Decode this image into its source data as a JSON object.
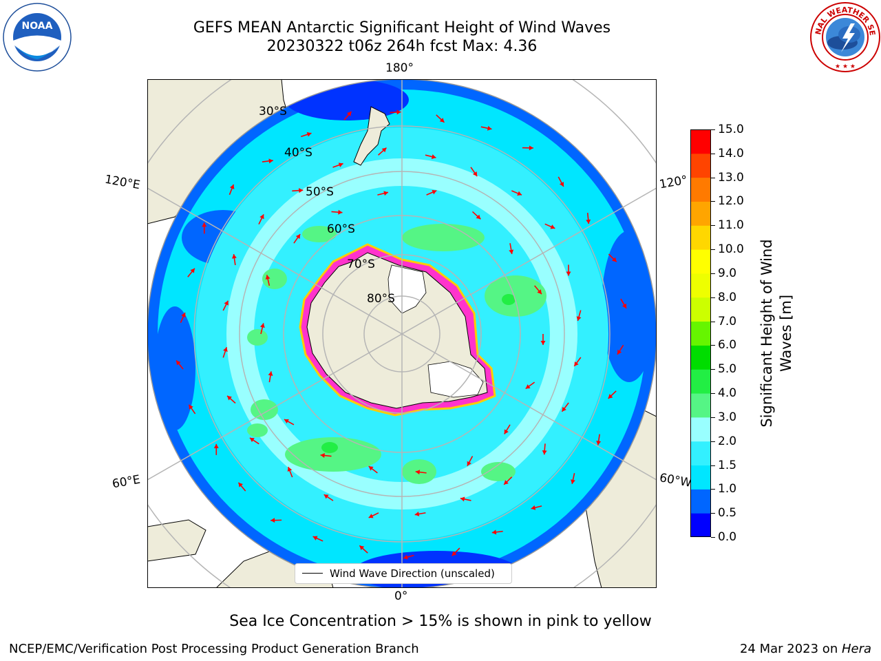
{
  "title": {
    "line1": "GEFS MEAN Antarctic Significant Height of Wind Waves",
    "line2": "20230322 t06z 264h fcst   Max: 4.36"
  },
  "map": {
    "projection": "south-polar-stereographic",
    "longitude_labels": {
      "top": "180°",
      "bottom": "0°",
      "upper_left": "120°E",
      "upper_right": "120°",
      "lower_left": "60°E",
      "lower_right": "60°W"
    },
    "latitude_labels": [
      "30°S",
      "40°S",
      "50°S",
      "60°S",
      "70°S",
      "80°S"
    ],
    "legend": "Wind Wave Direction (unscaled)",
    "colors": {
      "land": "#eeecda",
      "ice_shelf": "#ffffff",
      "sea_ice_edge_pink": "#ff33cc",
      "sea_ice_edge_yellow": "#ffcc00",
      "arrow": "#ff0000",
      "grid": "#b5b5b5"
    }
  },
  "colorbar": {
    "label": "Significant Height of Wind Waves [m]",
    "ticks": [
      "0.0",
      "0.5",
      "1.0",
      "1.5",
      "2.0",
      "3.0",
      "4.0",
      "5.0",
      "6.0",
      "7.0",
      "8.0",
      "9.0",
      "10.0",
      "11.0",
      "12.0",
      "13.0",
      "14.0",
      "15.0"
    ],
    "colors": [
      "#0000ff",
      "#0066ff",
      "#00e6ff",
      "#33f0ff",
      "#99ffff",
      "#55f585",
      "#22ee44",
      "#00dd00",
      "#66f500",
      "#ccff00",
      "#eeff00",
      "#ffff00",
      "#ffd700",
      "#ffa500",
      "#ff7a00",
      "#ff4400",
      "#ff0000"
    ]
  },
  "footnote": "Sea Ice Concentration > 15% is shown in pink to yellow",
  "credits": {
    "left": "NCEP/EMC/Verification Post Processing Product Generation Branch",
    "right_date": "24 Mar 2023 on ",
    "right_machine": "Hera"
  },
  "logos": {
    "noaa": "NOAA",
    "noaa_ring": "NATIONAL OCEANIC AND ATMOSPHERIC ADMINISTRATION · U.S. DEPARTMENT OF COMMERCE",
    "nws_ring": "NATIONAL WEATHER SERVICE"
  }
}
